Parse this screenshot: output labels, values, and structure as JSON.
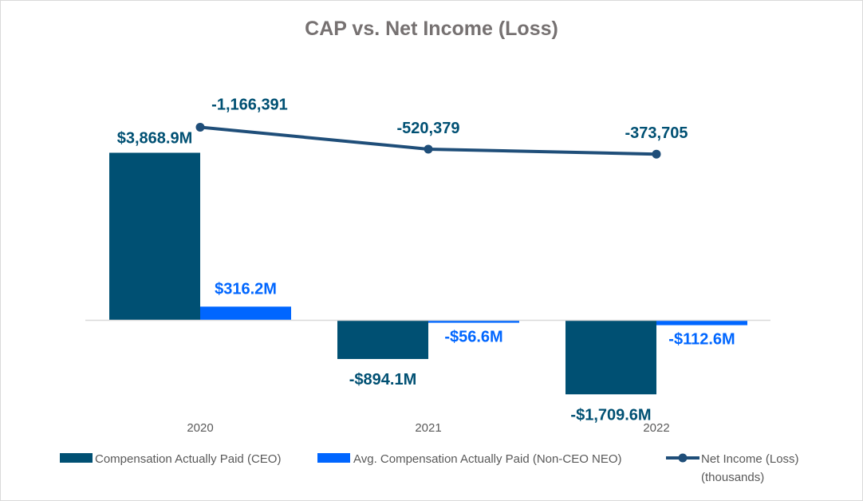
{
  "colors": {
    "ceo": "#005073",
    "neo": "#0066FF",
    "net_income": "#1F4E79",
    "title": "#767171",
    "tick": "#595959",
    "axis": "#d9d9d9"
  },
  "chart_data": {
    "type": "bar",
    "title": "CAP vs. Net Income (Loss)",
    "categories": [
      "2020",
      "2021",
      "2022"
    ],
    "series": [
      {
        "name": "Compensation Actually Paid (CEO)",
        "kind": "bar",
        "unit": "$M",
        "values": [
          3868.9,
          -894.1,
          -1709.6
        ],
        "labels": [
          "$3,868.9M",
          "-$894.1M",
          "-$1,709.6M"
        ]
      },
      {
        "name": "Avg. Compensation Actually Paid (Non-CEO NEO)",
        "kind": "bar",
        "unit": "$M",
        "values": [
          316.2,
          -56.6,
          -112.6
        ],
        "labels": [
          "$316.2M",
          "-$56.6M",
          "-$112.6M"
        ]
      },
      {
        "name": "Net Income (Loss) (thousands)",
        "legend_lines": [
          "Net Income (Loss)",
          "(thousands)"
        ],
        "kind": "line",
        "unit": "thousands",
        "axis": "secondary",
        "values": [
          -1166391,
          -520379,
          -373705
        ],
        "labels": [
          "-1,166,391",
          "-520,379",
          "-373,705"
        ]
      }
    ],
    "ylim_primary": [
      -2000,
      3868.9
    ],
    "ylim_secondary": [
      -2000000,
      -200000
    ],
    "legend_position": "bottom",
    "grid": false
  }
}
